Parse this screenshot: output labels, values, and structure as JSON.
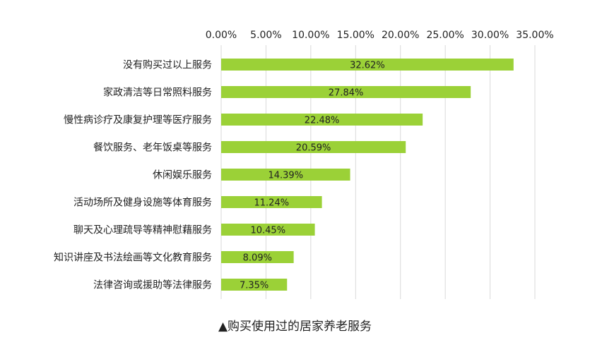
{
  "caption": "▲购买使用过的居家养老服务",
  "colors": {
    "bar": "#9bd137",
    "grid": "#d9d9d9",
    "text": "#222222"
  },
  "chart_data": {
    "type": "bar",
    "orientation": "horizontal",
    "x_axis_position": "top",
    "grid": true,
    "xlim": [
      0,
      35
    ],
    "ticks": [
      0,
      5,
      10,
      15,
      20,
      25,
      30,
      35
    ],
    "tick_labels": [
      "0.00%",
      "5.00%",
      "10.00%",
      "15.00%",
      "20.00%",
      "25.00%",
      "30.00%",
      "35.00%"
    ],
    "categories": [
      "没有购买过以上服务",
      "家政清洁等日常照料服务",
      "慢性病诊疗及康复护理等医疗服务",
      "餐饮服务、老年饭桌等服务",
      "休闲娱乐服务",
      "活动场所及健身设施等体育服务",
      "聊天及心理疏导等精神慰藉服务",
      "知识讲座及书法绘画等文化教育服务",
      "法律咨询或援助等法律服务"
    ],
    "values": [
      32.62,
      27.84,
      22.48,
      20.59,
      14.39,
      11.24,
      10.45,
      8.09,
      7.35
    ],
    "data_labels": [
      "32.62%",
      "27.84%",
      "22.48%",
      "20.59%",
      "14.39%",
      "11.24%",
      "10.45%",
      "8.09%",
      "7.35%"
    ]
  }
}
